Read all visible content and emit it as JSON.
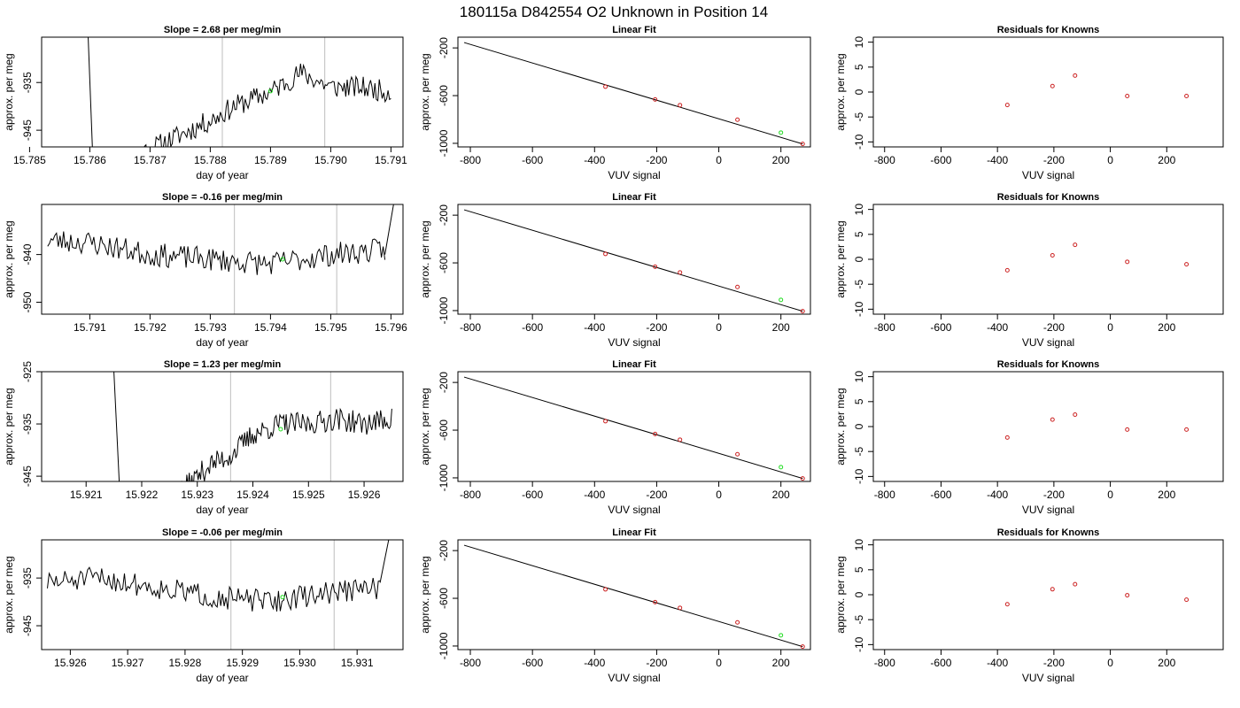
{
  "page": {
    "title": "180115a      D842554    O2 Unknown in Position  14"
  },
  "colors": {
    "line": "#000000",
    "grid": "#c8c8c8",
    "point": "#cc2222",
    "highlight": "#22dd22"
  },
  "chart_data": [
    {
      "type": "line",
      "row": 0,
      "col": 0,
      "title": "Slope =  2.68  per meg/min",
      "xlabel": "day of year",
      "ylabel": "approx. per meg",
      "xlim": [
        15.7852,
        15.7912
      ],
      "ylim": [
        -948.5,
        -925.5
      ],
      "xticks": [
        15.785,
        15.786,
        15.787,
        15.788,
        15.789,
        15.79,
        15.791
      ],
      "xtick_labels": [
        "15.785",
        "15.786",
        "15.787",
        "15.788",
        "15.789",
        "15.790",
        "15.791"
      ],
      "yticks": [
        -945,
        -935
      ],
      "ytick_labels": [
        "-945",
        "-935"
      ],
      "vlines": [
        15.7882,
        15.7899
      ],
      "highlight": {
        "x": 15.789,
        "y": -936.8
      },
      "series": {
        "spike": {
          "x0": 15.78595,
          "y0": -918,
          "x1": 15.78605,
          "y1": -951
        },
        "x_start": 15.7864,
        "x_end": 15.791,
        "anchors": [
          [
            15.7864,
            -952
          ],
          [
            15.787,
            -949
          ],
          [
            15.7875,
            -946
          ],
          [
            15.788,
            -943
          ],
          [
            15.7884,
            -940
          ],
          [
            15.789,
            -937
          ],
          [
            15.7895,
            -933
          ],
          [
            15.79,
            -936
          ],
          [
            15.7905,
            -936
          ],
          [
            15.791,
            -937
          ]
        ],
        "noise": 2.3,
        "seed": 11
      }
    },
    {
      "type": "scatter",
      "row": 0,
      "col": 1,
      "title": "Linear Fit",
      "xlabel": "VUV signal",
      "ylabel": "approx. per meg",
      "xlim": [
        -840,
        295
      ],
      "ylim": [
        -1030,
        -110
      ],
      "xticks": [
        -800,
        -600,
        -400,
        -200,
        0,
        200
      ],
      "xtick_labels": [
        "-800",
        "-600",
        "-400",
        "-200",
        "0",
        "200"
      ],
      "yticks": [
        -1000,
        -600,
        -200
      ],
      "ytick_labels": [
        "-1000",
        "-600",
        "-200"
      ],
      "fit_line": {
        "x": [
          -820,
          270
        ],
        "y": [
          -155,
          -1005
        ]
      },
      "points": [
        [
          -365,
          -525
        ],
        [
          -205,
          -632
        ],
        [
          -125,
          -680
        ],
        [
          60,
          -802
        ],
        [
          270,
          -1005
        ]
      ],
      "highlight": {
        "x": 200,
        "y": -910
      }
    },
    {
      "type": "scatter",
      "row": 0,
      "col": 2,
      "title": "Residuals for Knowns",
      "xlabel": "VUV signal",
      "ylabel": "approx. per meg",
      "xlim": [
        -840,
        400
      ],
      "ylim": [
        -11,
        11
      ],
      "xticks": [
        -800,
        -600,
        -400,
        -200,
        0,
        200
      ],
      "xtick_labels": [
        "-800",
        "-600",
        "-400",
        "-200",
        "0",
        "200"
      ],
      "yticks": [
        -10,
        -5,
        0,
        5,
        10
      ],
      "ytick_labels": [
        "-10",
        "-5",
        "0",
        "5",
        "10"
      ],
      "points": [
        [
          -365,
          -2.6
        ],
        [
          -205,
          1.2
        ],
        [
          -125,
          3.3
        ],
        [
          60,
          -0.8
        ],
        [
          270,
          -0.8
        ]
      ]
    },
    {
      "type": "line",
      "row": 1,
      "col": 0,
      "title": "Slope =  -0.16  per meg/min",
      "xlabel": "day of year",
      "ylabel": "approx. per meg",
      "xlim": [
        15.7902,
        15.7962
      ],
      "ylim": [
        -952.5,
        -929.5
      ],
      "xticks": [
        15.791,
        15.792,
        15.793,
        15.794,
        15.795,
        15.796
      ],
      "xtick_labels": [
        "15.791",
        "15.792",
        "15.793",
        "15.794",
        "15.795",
        "15.796"
      ],
      "yticks": [
        -950,
        -940
      ],
      "ytick_labels": [
        "-950",
        "-940"
      ],
      "vlines": [
        15.7934,
        15.7951
      ],
      "highlight": {
        "x": 15.7942,
        "y": -941
      },
      "series": {
        "spike": {
          "x0": 15.7959,
          "y0": -940,
          "x1": 15.79605,
          "y1": -929
        },
        "x_start": 15.7903,
        "x_end": 15.7959,
        "anchors": [
          [
            15.7903,
            -937
          ],
          [
            15.791,
            -937.5
          ],
          [
            15.792,
            -940
          ],
          [
            15.793,
            -941
          ],
          [
            15.794,
            -942
          ],
          [
            15.795,
            -940
          ],
          [
            15.7959,
            -939
          ]
        ],
        "noise": 2.5,
        "seed": 23
      }
    },
    {
      "type": "scatter",
      "row": 1,
      "col": 1,
      "title": "Linear Fit",
      "xlabel": "VUV signal",
      "ylabel": "approx. per meg",
      "xlim": [
        -840,
        295
      ],
      "ylim": [
        -1030,
        -110
      ],
      "xticks": [
        -800,
        -600,
        -400,
        -200,
        0,
        200
      ],
      "xtick_labels": [
        "-800",
        "-600",
        "-400",
        "-200",
        "0",
        "200"
      ],
      "yticks": [
        -1000,
        -600,
        -200
      ],
      "ytick_labels": [
        "-1000",
        "-600",
        "-200"
      ],
      "fit_line": {
        "x": [
          -820,
          270
        ],
        "y": [
          -155,
          -1005
        ]
      },
      "points": [
        [
          -365,
          -525
        ],
        [
          -205,
          -632
        ],
        [
          -125,
          -680
        ],
        [
          60,
          -802
        ],
        [
          270,
          -1005
        ]
      ],
      "highlight": {
        "x": 200,
        "y": -910
      }
    },
    {
      "type": "scatter",
      "row": 1,
      "col": 2,
      "title": "Residuals for Knowns",
      "xlabel": "VUV signal",
      "ylabel": "approx. per meg",
      "xlim": [
        -840,
        400
      ],
      "ylim": [
        -11,
        11
      ],
      "xticks": [
        -800,
        -600,
        -400,
        -200,
        0,
        200
      ],
      "xtick_labels": [
        "-800",
        "-600",
        "-400",
        "-200",
        "0",
        "200"
      ],
      "yticks": [
        -10,
        -5,
        0,
        5,
        10
      ],
      "ytick_labels": [
        "-10",
        "-5",
        "0",
        "5",
        "10"
      ],
      "points": [
        [
          -365,
          -2.2
        ],
        [
          -205,
          0.8
        ],
        [
          -125,
          2.9
        ],
        [
          60,
          -0.5
        ],
        [
          270,
          -1.0
        ]
      ]
    },
    {
      "type": "line",
      "row": 2,
      "col": 0,
      "title": "Slope =  1.23  per meg/min",
      "xlabel": "day of year",
      "ylabel": "approx. per meg",
      "xlim": [
        15.9202,
        15.9267
      ],
      "ylim": [
        -946,
        -925
      ],
      "xticks": [
        15.921,
        15.922,
        15.923,
        15.924,
        15.925,
        15.926
      ],
      "xtick_labels": [
        "15.921",
        "15.922",
        "15.923",
        "15.924",
        "15.925",
        "15.926"
      ],
      "yticks": [
        -945,
        -935,
        -925
      ],
      "ytick_labels": [
        "-945",
        "-935",
        "-925"
      ],
      "vlines": [
        15.9236,
        15.9254
      ],
      "highlight": {
        "x": 15.9245,
        "y": -936
      },
      "series": {
        "spike": {
          "x0": 15.9215,
          "y0": -925,
          "x1": 15.9216,
          "y1": -947
        },
        "x_start": 15.9222,
        "x_end": 15.9265,
        "anchors": [
          [
            15.9222,
            -952
          ],
          [
            15.9228,
            -947
          ],
          [
            15.9232,
            -943
          ],
          [
            15.9236,
            -941
          ],
          [
            15.924,
            -937
          ],
          [
            15.9245,
            -935
          ],
          [
            15.925,
            -935
          ],
          [
            15.9255,
            -934
          ],
          [
            15.926,
            -935
          ],
          [
            15.9265,
            -934
          ]
        ],
        "noise": 2.2,
        "seed": 37
      }
    },
    {
      "type": "scatter",
      "row": 2,
      "col": 1,
      "title": "Linear Fit",
      "xlabel": "VUV signal",
      "ylabel": "approx. per meg",
      "xlim": [
        -840,
        295
      ],
      "ylim": [
        -1030,
        -110
      ],
      "xticks": [
        -800,
        -600,
        -400,
        -200,
        0,
        200
      ],
      "xtick_labels": [
        "-800",
        "-600",
        "-400",
        "-200",
        "0",
        "200"
      ],
      "yticks": [
        -1000,
        -600,
        -200
      ],
      "ytick_labels": [
        "-1000",
        "-600",
        "-200"
      ],
      "fit_line": {
        "x": [
          -820,
          270
        ],
        "y": [
          -155,
          -1005
        ]
      },
      "points": [
        [
          -365,
          -525
        ],
        [
          -205,
          -632
        ],
        [
          -125,
          -680
        ],
        [
          60,
          -802
        ],
        [
          270,
          -1005
        ]
      ],
      "highlight": {
        "x": 200,
        "y": -910
      }
    },
    {
      "type": "scatter",
      "row": 2,
      "col": 2,
      "title": "Residuals for Knowns",
      "xlabel": "VUV signal",
      "ylabel": "approx. per meg",
      "xlim": [
        -840,
        400
      ],
      "ylim": [
        -11,
        11
      ],
      "xticks": [
        -800,
        -600,
        -400,
        -200,
        0,
        200
      ],
      "xtick_labels": [
        "-800",
        "-600",
        "-400",
        "-200",
        "0",
        "200"
      ],
      "yticks": [
        -10,
        -5,
        0,
        5,
        10
      ],
      "ytick_labels": [
        "-10",
        "-5",
        "0",
        "5",
        "10"
      ],
      "points": [
        [
          -365,
          -2.2
        ],
        [
          -205,
          1.4
        ],
        [
          -125,
          2.4
        ],
        [
          60,
          -0.6
        ],
        [
          270,
          -0.6
        ]
      ]
    },
    {
      "type": "line",
      "row": 3,
      "col": 0,
      "title": "Slope =  -0.06  per meg/min",
      "xlabel": "day of year",
      "ylabel": "approx. per meg",
      "xlim": [
        15.9255,
        15.9318
      ],
      "ylim": [
        -950,
        -927
      ],
      "xticks": [
        15.926,
        15.927,
        15.928,
        15.929,
        15.93,
        15.931
      ],
      "xtick_labels": [
        "15.926",
        "15.927",
        "15.928",
        "15.929",
        "15.930",
        "15.931"
      ],
      "yticks": [
        -945,
        -935
      ],
      "ytick_labels": [
        "-945",
        "-935"
      ],
      "vlines": [
        15.9288,
        15.9306
      ],
      "highlight": {
        "x": 15.9297,
        "y": -939
      },
      "series": {
        "spike": {
          "x0": 15.9314,
          "y0": -936,
          "x1": 15.93155,
          "y1": -927
        },
        "x_start": 15.9256,
        "x_end": 15.9314,
        "anchors": [
          [
            15.9256,
            -936
          ],
          [
            15.9265,
            -935
          ],
          [
            15.9275,
            -937
          ],
          [
            15.9285,
            -939
          ],
          [
            15.9295,
            -940
          ],
          [
            15.9305,
            -938
          ],
          [
            15.9314,
            -937
          ]
        ],
        "noise": 2.4,
        "seed": 51
      }
    },
    {
      "type": "scatter",
      "row": 3,
      "col": 1,
      "title": "Linear Fit",
      "xlabel": "VUV signal",
      "ylabel": "approx. per meg",
      "xlim": [
        -840,
        295
      ],
      "ylim": [
        -1030,
        -110
      ],
      "xticks": [
        -800,
        -600,
        -400,
        -200,
        0,
        200
      ],
      "xtick_labels": [
        "-800",
        "-600",
        "-400",
        "-200",
        "0",
        "200"
      ],
      "yticks": [
        -1000,
        -600,
        -200
      ],
      "ytick_labels": [
        "-1000",
        "-600",
        "-200"
      ],
      "fit_line": {
        "x": [
          -820,
          270
        ],
        "y": [
          -155,
          -1005
        ]
      },
      "points": [
        [
          -365,
          -525
        ],
        [
          -205,
          -632
        ],
        [
          -125,
          -680
        ],
        [
          60,
          -802
        ],
        [
          270,
          -1005
        ]
      ],
      "highlight": {
        "x": 200,
        "y": -910
      }
    },
    {
      "type": "scatter",
      "row": 3,
      "col": 2,
      "title": "Residuals for Knowns",
      "xlabel": "VUV signal",
      "ylabel": "approx. per meg",
      "xlim": [
        -840,
        400
      ],
      "ylim": [
        -11,
        11
      ],
      "xticks": [
        -800,
        -600,
        -400,
        -200,
        0,
        200
      ],
      "xtick_labels": [
        "-800",
        "-600",
        "-400",
        "-200",
        "0",
        "200"
      ],
      "yticks": [
        -10,
        -5,
        0,
        5,
        10
      ],
      "ytick_labels": [
        "-10",
        "-5",
        "0",
        "5",
        "10"
      ],
      "points": [
        [
          -365,
          -1.9
        ],
        [
          -205,
          1.1
        ],
        [
          -125,
          2.1
        ],
        [
          60,
          -0.1
        ],
        [
          270,
          -1.0
        ]
      ]
    }
  ]
}
